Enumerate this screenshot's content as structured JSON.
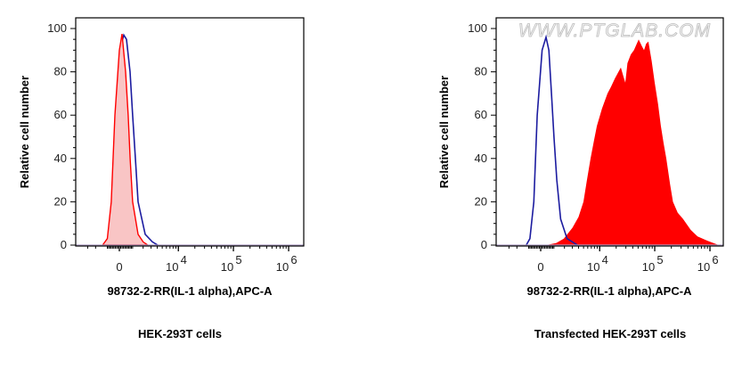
{
  "colors": {
    "isotype": "#1c1ca0",
    "sample_line": "#ff0000",
    "sample_fill_light": "#f9c5c5",
    "sample_fill_solid": "#ff0000"
  },
  "chart_data": [
    {
      "type": "area",
      "caption": "HEK-293T cells",
      "xlabel": "98732-2-RR(IL-1 alpha),APC-A",
      "ylabel": "Relative cell number",
      "x_scale": "biexponential",
      "x_ticks": [
        "0",
        "10^4",
        "10^5",
        "10^6"
      ],
      "y_ticks": [
        "0",
        "20",
        "40",
        "60",
        "80",
        "100"
      ],
      "ylim": [
        0,
        100
      ],
      "grid": false,
      "series": [
        {
          "style": "line",
          "color": "#1c1ca0",
          "points": [
            [
              -1200,
              0
            ],
            [
              -800,
              2
            ],
            [
              -450,
              20
            ],
            [
              -200,
              60
            ],
            [
              100,
              92
            ],
            [
              320,
              97
            ],
            [
              520,
              95
            ],
            [
              790,
              80
            ],
            [
              1000,
              60
            ],
            [
              1240,
              40
            ],
            [
              1480,
              20
            ],
            [
              2230,
              5
            ],
            [
              3200,
              1.5
            ],
            [
              4100,
              0
            ]
          ]
        },
        {
          "style": "filled-light",
          "color": "#ff0000",
          "points": [
            [
              -1300,
              0
            ],
            [
              -900,
              3
            ],
            [
              -590,
              20
            ],
            [
              -320,
              60
            ],
            [
              0,
              90
            ],
            [
              190,
              97.5
            ],
            [
              450,
              80
            ],
            [
              650,
              60
            ],
            [
              800,
              40
            ],
            [
              1000,
              20
            ],
            [
              1480,
              5
            ],
            [
              2000,
              1.5
            ],
            [
              2560,
              0
            ]
          ]
        }
      ]
    },
    {
      "type": "area",
      "caption": "Transfected HEK-293T cells",
      "xlabel": "98732-2-RR(IL-1 alpha),APC-A",
      "ylabel": "Relative cell number",
      "watermark": "WWW.PTGLAB.COM",
      "x_scale": "biexponential",
      "x_ticks": [
        "0",
        "10^4",
        "10^5",
        "10^6"
      ],
      "y_ticks": [
        "0",
        "20",
        "40",
        "60",
        "80",
        "100"
      ],
      "ylim": [
        0,
        100
      ],
      "grid": false,
      "series": [
        {
          "style": "filled-solid",
          "color": "#ff0000",
          "points": [
            [
              400,
              0
            ],
            [
              1200,
              1
            ],
            [
              1930,
              3
            ],
            [
              3000,
              8
            ],
            [
              4000,
              13
            ],
            [
              4980,
              20
            ],
            [
              5800,
              30
            ],
            [
              6790,
              40
            ],
            [
              7800,
              48
            ],
            [
              8870,
              55
            ],
            [
              11000,
              63
            ],
            [
              13900,
              70
            ],
            [
              16000,
              73
            ],
            [
              19000,
              77
            ],
            [
              22000,
              80
            ],
            [
              24300,
              82
            ],
            [
              27000,
              78
            ],
            [
              29300,
              75
            ],
            [
              32000,
              84
            ],
            [
              36700,
              88
            ],
            [
              42000,
              90
            ],
            [
              51100,
              95
            ],
            [
              58000,
              92
            ],
            [
              64000,
              90
            ],
            [
              70000,
              93
            ],
            [
              76800,
              94
            ],
            [
              88000,
              85
            ],
            [
              99900,
              75
            ],
            [
              115000,
              65
            ],
            [
              129000,
              55
            ],
            [
              145000,
              47
            ],
            [
              162000,
              40
            ],
            [
              190000,
              28
            ],
            [
              214000,
              20
            ],
            [
              260000,
              15
            ],
            [
              327000,
              12
            ],
            [
              450000,
              7
            ],
            [
              596000,
              4
            ],
            [
              900000,
              2
            ],
            [
              1450000,
              0
            ]
          ]
        },
        {
          "style": "line",
          "color": "#1c1ca0",
          "points": [
            [
              -1100,
              0
            ],
            [
              -800,
              3
            ],
            [
              -500,
              20
            ],
            [
              -250,
              60
            ],
            [
              100,
              90
            ],
            [
              390,
              96
            ],
            [
              600,
              90
            ],
            [
              800,
              70
            ],
            [
              1000,
              50
            ],
            [
              1250,
              30
            ],
            [
              1600,
              12
            ],
            [
              2300,
              3
            ],
            [
              3800,
              0
            ]
          ]
        }
      ]
    }
  ]
}
